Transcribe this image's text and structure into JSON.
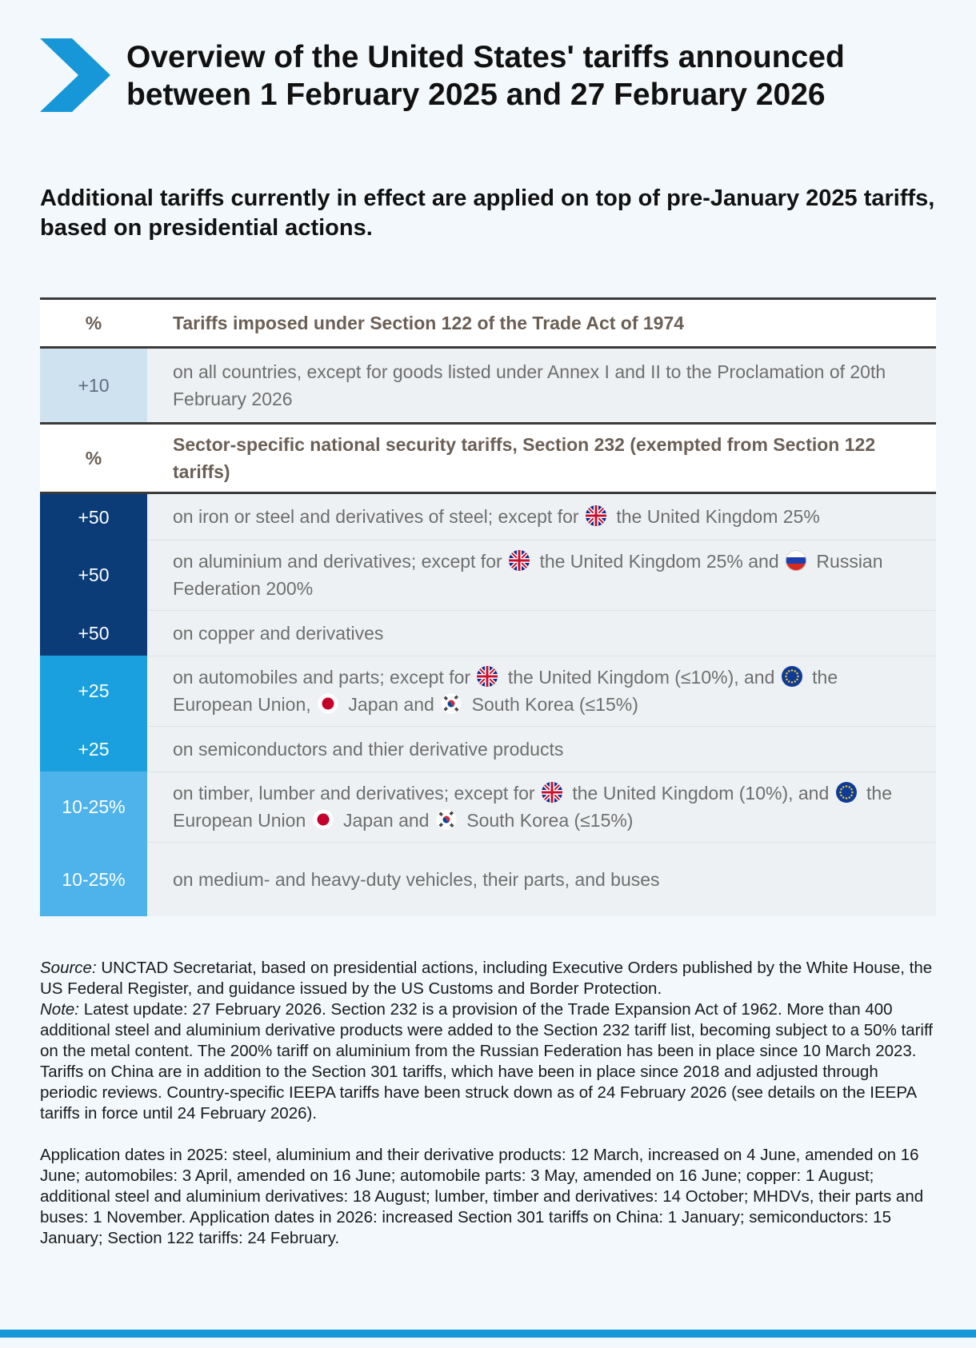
{
  "header": {
    "title": "Overview of the United States' tariffs announced between 1 February 2025 and 27 February 2026",
    "subtitle": "Additional tariffs currently in effect are applied on top of pre-January 2025 tariffs, based on presidential actions."
  },
  "colors": {
    "accent": "#1797d7",
    "dark_navy": "#0c3c78",
    "mid_blue": "#1aa0de",
    "light_blue": "#4eb3ea",
    "pale_blue": "#cfe2f0"
  },
  "section122": {
    "col_percent": "%",
    "heading": "Tariffs imposed under Section 122 of the Trade Act of 1974",
    "rows": [
      {
        "value": "+10",
        "text": "on all countries, except for goods listed under Annex I and II to the Proclamation of 20th February 2026"
      }
    ]
  },
  "section232": {
    "col_percent": "%",
    "heading": "Sector-specific national security tariffs, Section 232 (exempted from Section 122 tariffs)",
    "rows": [
      {
        "value": "+50",
        "segments": [
          "on iron or steel and derivatives of steel; except for",
          "the United Kingdom 25%"
        ]
      },
      {
        "value": "+50",
        "segments": [
          "on aluminium and derivatives; except for",
          "the United Kingdom 25% and",
          "Russian Federation 200%"
        ]
      },
      {
        "value": "+50",
        "segments": [
          "on copper and derivatives"
        ]
      },
      {
        "value": "+25",
        "segments": [
          "on automobiles and parts; except for",
          "the United Kingdom (≤10%), and",
          "the European Union,",
          "Japan and",
          "South Korea (≤15%)"
        ]
      },
      {
        "value": "+25",
        "segments": [
          "on semiconductors and thier derivative products"
        ]
      },
      {
        "value": "10-25%",
        "segments": [
          "on timber, lumber and derivatives; except for",
          "the United Kingdom (10%), and",
          "the European Union",
          "Japan and",
          "South Korea (≤15%)"
        ]
      },
      {
        "value": "10-25%",
        "segments": [
          "on medium- and heavy-duty vehicles, their parts, and buses"
        ]
      }
    ]
  },
  "flags": {
    "uk": "uk-flag-icon",
    "russia": "russia-flag-icon",
    "eu": "eu-flag-icon",
    "japan": "japan-flag-icon",
    "korea": "south-korea-flag-icon"
  },
  "footer": {
    "source_label": "Source:",
    "source_text": " UNCTAD Secretariat, based on presidential actions, including Executive Orders published by the White House, the US Federal Register, and guidance issued by the US Customs and Border Protection.",
    "note_label": "Note:",
    "note_text": " Latest update: 27 February 2026. Section 232 is a provision of the Trade Expansion Act of 1962. More than 400 additional steel and aluminium derivative products were added to the Section 232 tariff list, becoming subject to a 50% tariff on the metal content. The 200% tariff on aluminium from the Russian Federation has been in place since 10 March 2023. Tariffs on China are in addition to the Section 301 tariffs, which have been in place since 2018 and adjusted through periodic reviews. Country-specific IEEPA tariffs have been struck down as of 24 February 2026 (see details on the IEEPA tariffs in force until 24 February 2026).",
    "dates_text": "Application dates in 2025: steel, aluminium and their derivative products: 12 March, increased on 4 June, amended on 16 June; automobiles: 3 April, amended on 16 June; automobile parts: 3 May, amended on 16 June; copper: 1 August; additional steel and aluminium derivatives: 18 August; lumber, timber and derivatives: 14 October; MHDVs, their parts and buses: 1 November. Application dates in 2026: increased Section 301 tariffs on China: 1 January; semiconductors: 15 January; Section 122 tariffs: 24 February."
  }
}
